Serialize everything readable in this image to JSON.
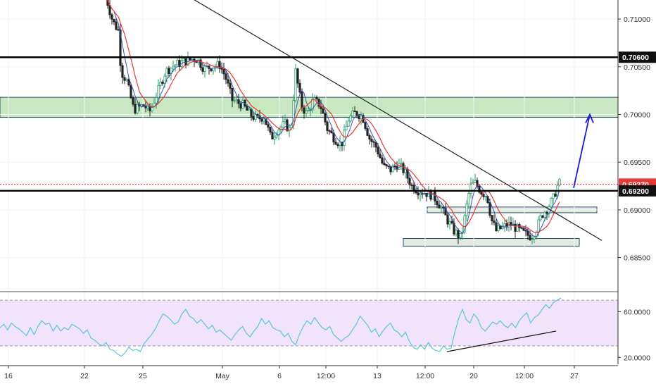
{
  "chart_data": [
    {
      "type": "candlestick",
      "title": "",
      "y_ticks": [
        "0.71000",
        "0.70500",
        "0.70000",
        "0.69500",
        "0.69000",
        "0.68500"
      ],
      "ylim": [
        0.6815,
        0.712
      ],
      "x_ticks": [
        "16",
        "22",
        "25",
        "May",
        "6",
        "12:00",
        "13",
        "12:00",
        "20",
        "12:00",
        "27"
      ],
      "price_labels": [
        {
          "name": "resistance",
          "label": "0.70600",
          "value": 0.706,
          "style": "dark"
        },
        {
          "name": "last-price",
          "label": "0.69270",
          "value": 0.6927,
          "style": "red"
        },
        {
          "name": "support",
          "label": "0.69200",
          "value": 0.692,
          "style": "dark"
        }
      ],
      "horizontal_lines": [
        {
          "name": "resistance-line",
          "value": 0.706,
          "color": "#000000"
        },
        {
          "name": "support-line",
          "value": 0.692,
          "color": "#000000"
        },
        {
          "name": "last-price-line",
          "value": 0.6927,
          "color": "#e53935",
          "dashed": true
        }
      ],
      "zones": [
        {
          "name": "supply-zone",
          "from": 0.6997,
          "to": 0.7018,
          "color": "#bfe3b5",
          "border": "#1f4e79",
          "full_width": true
        },
        {
          "name": "breakout-box",
          "from": 0.6897,
          "to": 0.6903,
          "color": "#dfe7d8",
          "border": "#1f4e79",
          "full_width": false
        },
        {
          "name": "bottom-box",
          "from": 0.6862,
          "to": 0.687,
          "color": "#dfe7d8",
          "border": "#1f4e79",
          "full_width": false
        }
      ],
      "trendline": {
        "from_price": 0.7125,
        "to_price": 0.6868,
        "color": "#222222"
      },
      "target_arrow": {
        "from_price": 0.6923,
        "to_price": 0.7,
        "color": "#1a1adb"
      },
      "colors": {
        "up": "#2e9e6b",
        "down": "#222222",
        "ma_fast": "#3f51b5",
        "ma_slow": "#e53935"
      }
    },
    {
      "type": "line",
      "indicator": "RSI",
      "y_ticks": [
        "60.0000",
        "20.0000"
      ],
      "ylim": [
        14,
        75
      ],
      "band": [
        30,
        70
      ],
      "band_color": "#f1e3fb",
      "line_color": "#4fc3d9",
      "divergence_line": {
        "from_value": 25,
        "to_value": 43
      },
      "values": [
        46,
        49,
        44,
        50,
        47,
        45,
        42,
        39,
        46,
        40,
        47,
        52,
        49,
        50,
        43,
        48,
        43,
        46,
        44,
        49,
        47,
        45,
        41,
        44,
        37,
        35,
        32,
        30,
        33,
        27,
        26,
        23,
        21,
        24,
        29,
        26,
        27,
        25,
        32,
        36,
        40,
        45,
        52,
        58,
        56,
        53,
        49,
        51,
        58,
        62,
        56,
        54,
        50,
        53,
        49,
        45,
        48,
        42,
        44,
        41,
        38,
        35,
        40,
        44,
        47,
        41,
        38,
        43,
        47,
        54,
        49,
        52,
        46,
        44,
        43,
        38,
        41,
        34,
        31,
        40,
        47,
        52,
        49,
        55,
        50,
        46,
        44,
        47,
        40,
        37,
        34,
        37,
        39,
        44,
        49,
        56,
        52,
        48,
        42,
        45,
        38,
        43,
        47,
        50,
        44,
        42,
        38,
        42,
        34,
        29,
        27,
        31,
        27,
        33,
        28,
        26,
        25,
        30,
        27,
        28,
        42,
        54,
        62,
        53,
        50,
        58,
        54,
        46,
        43,
        47,
        51,
        49,
        52,
        48,
        46,
        50,
        46,
        52,
        56,
        59,
        50,
        55,
        57,
        62,
        66,
        63,
        68,
        70,
        72
      ]
    }
  ]
}
